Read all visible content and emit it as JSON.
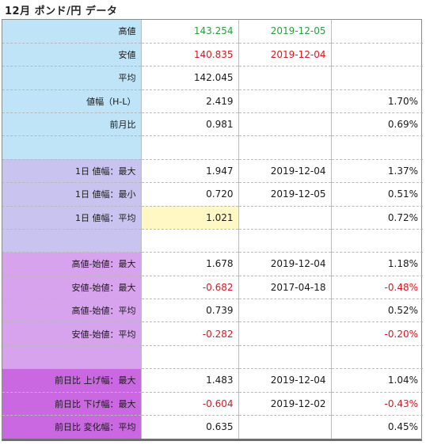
{
  "title": "12月 ポンド/円 データ",
  "rows": [
    {
      "label": "高値",
      "value": "143.254",
      "date": "2019-12-05",
      "pct": ""
    },
    {
      "label": "安値",
      "value": "140.835",
      "date": "2019-12-04",
      "pct": ""
    },
    {
      "label": "平均",
      "value": "142.045",
      "date": "",
      "pct": ""
    },
    {
      "label": "値幅（H-L）",
      "value": "2.419",
      "date": "",
      "pct": "1.70%"
    },
    {
      "label": "前月比",
      "value": "0.981",
      "date": "",
      "pct": "0.69%"
    },
    {
      "label": "",
      "value": "",
      "date": "",
      "pct": ""
    },
    {
      "label": "1日 値幅：最大",
      "value": "1.947",
      "date": "2019-12-04",
      "pct": "1.37%"
    },
    {
      "label": "1日 値幅：最小",
      "value": "0.720",
      "date": "2019-12-05",
      "pct": "0.51%"
    },
    {
      "label": "1日 値幅：平均",
      "value": "1.021",
      "date": "",
      "pct": "0.72%"
    },
    {
      "label": "",
      "value": "",
      "date": "",
      "pct": ""
    },
    {
      "label": "高値-始値：最大",
      "value": "1.678",
      "date": "2019-12-04",
      "pct": "1.18%"
    },
    {
      "label": "安値-始値：最大",
      "value": "-0.682",
      "date": "2017-04-18",
      "pct": "-0.48%"
    },
    {
      "label": "高値-始値：平均",
      "value": "0.739",
      "date": "",
      "pct": "0.52%"
    },
    {
      "label": "安値-始値：平均",
      "value": "-0.282",
      "date": "",
      "pct": "-0.20%"
    },
    {
      "label": "",
      "value": "",
      "date": "",
      "pct": ""
    },
    {
      "label": "前日比 上げ幅：最大",
      "value": "1.483",
      "date": "2019-12-04",
      "pct": "1.04%"
    },
    {
      "label": "前日比 下げ幅：最大",
      "value": "-0.604",
      "date": "2019-12-02",
      "pct": "-0.43%"
    },
    {
      "label": "前日比 変化幅：平均",
      "value": "0.635",
      "date": "",
      "pct": "0.45%"
    }
  ],
  "colors": {
    "high": "#23a33a",
    "low": "#e0141c",
    "negative": "#e0141c",
    "section1_bg": "#bfe3f7",
    "section2_bg": "#c9c4ef",
    "section3_bg": "#d6a3ec",
    "section4_bg": "#c968e0",
    "highlight": "#fff8c4"
  }
}
